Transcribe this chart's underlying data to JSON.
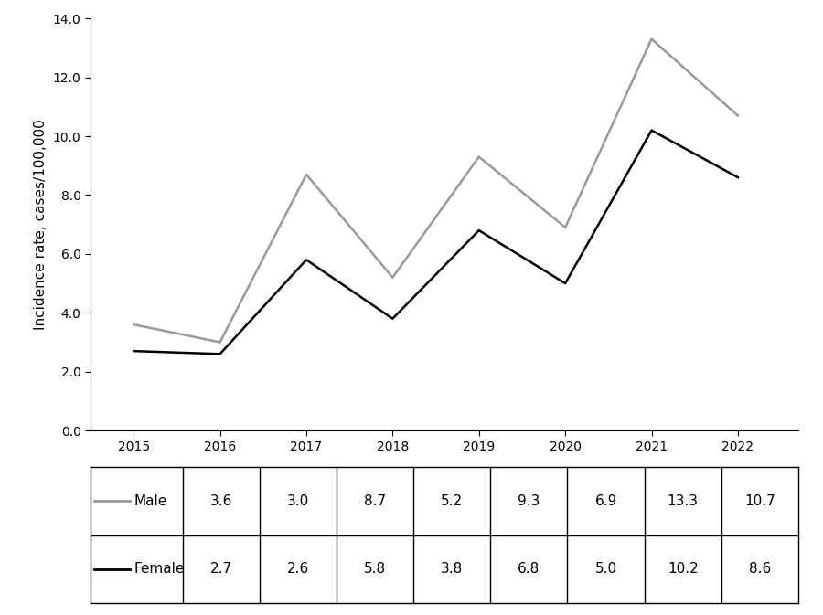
{
  "years": [
    2015,
    2016,
    2017,
    2018,
    2019,
    2020,
    2021,
    2022
  ],
  "male_values": [
    3.6,
    3.0,
    8.7,
    5.2,
    9.3,
    6.9,
    13.3,
    10.7
  ],
  "female_values": [
    2.7,
    2.6,
    5.8,
    3.8,
    6.8,
    5.0,
    10.2,
    8.6
  ],
  "male_color": "#999999",
  "female_color": "#000000",
  "ylabel": "Incidence rate, cases/100,000",
  "ylim": [
    0.0,
    14.0
  ],
  "yticks": [
    0.0,
    2.0,
    4.0,
    6.0,
    8.0,
    10.0,
    12.0,
    14.0
  ],
  "line_width": 1.8,
  "table_male_label": "Male",
  "table_female_label": "Female",
  "background_color": "#ffffff",
  "table_border_color": "#000000",
  "axis_fontsize": 11,
  "tick_fontsize": 10,
  "table_fontsize": 11
}
